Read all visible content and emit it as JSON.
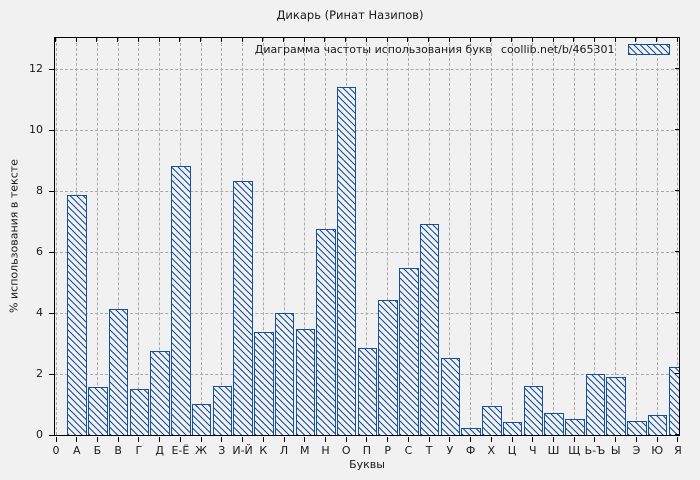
{
  "page": {
    "title": "Дикарь (Ринат Назипов)"
  },
  "legend": {
    "label": "Диаграмма частоты использования букв",
    "url": "coollib.net/b/465301",
    "swatch_icon": "blue-hatch-swatch"
  },
  "colors": {
    "bar": "#1450a0",
    "grid": "#a9a9a9",
    "background": "#f1f1f1",
    "plot_border": "#000000",
    "text": "#1a1a1a"
  },
  "chart_data": {
    "type": "bar",
    "title": "Дикарь (Ринат Назипов)",
    "xlabel": "Буквы",
    "ylabel": "% использования в тексте",
    "origin_tick_label": "0",
    "yticks": [
      0,
      2,
      4,
      6,
      8,
      10,
      12
    ],
    "ylim": [
      0,
      13
    ],
    "grid": true,
    "legend_position": "top-right-inside",
    "bar_style": "diagonal-hatch-outline",
    "categories": [
      "А",
      "Б",
      "В",
      "Г",
      "Д",
      "Е-Ё",
      "Ж",
      "З",
      "И-Й",
      "К",
      "Л",
      "М",
      "Н",
      "О",
      "П",
      "Р",
      "С",
      "Т",
      "У",
      "Ф",
      "Х",
      "Ц",
      "Ч",
      "Ш",
      "Щ",
      "Ь-Ъ",
      "Ы",
      "Э",
      "Ю",
      "Я"
    ],
    "values": [
      7.85,
      1.55,
      4.1,
      1.5,
      2.75,
      8.8,
      1.0,
      1.6,
      8.3,
      3.35,
      4.0,
      3.45,
      6.75,
      11.4,
      2.85,
      4.4,
      5.45,
      6.9,
      2.5,
      0.2,
      0.95,
      0.4,
      1.6,
      0.7,
      0.5,
      2.0,
      1.9,
      0.45,
      0.65,
      2.2
    ]
  }
}
